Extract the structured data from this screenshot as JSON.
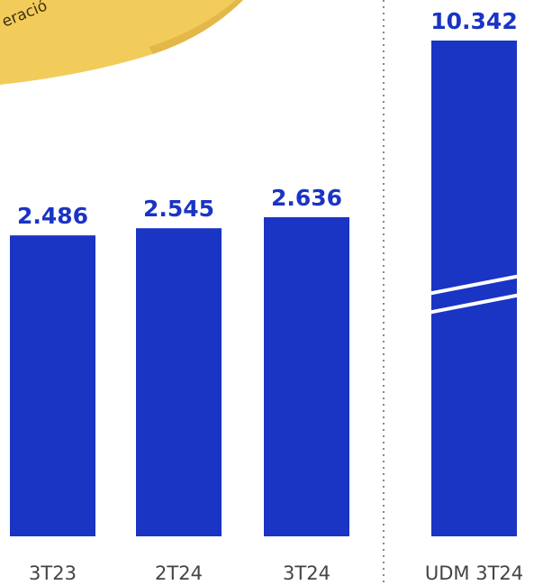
{
  "chart_data": {
    "type": "bar",
    "categories": [
      "3T23",
      "2T24",
      "3T24",
      "UDM 3T24"
    ],
    "values": [
      2486,
      2545,
      2636,
      10342
    ],
    "value_labels": [
      "2.486",
      "2.545",
      "2.636",
      "10.342"
    ],
    "axis_break_on": "UDM 3T24",
    "ylim": [
      0,
      3000
    ],
    "title": "",
    "xlabel": "",
    "ylabel": "",
    "grid": false,
    "legend": "none"
  },
  "note_fragment": "eració",
  "colors": {
    "bar": "#1a34c4",
    "value_text": "#1a34c4",
    "category_text": "#444444",
    "divider": "#888888",
    "note": "#f2cc5a"
  }
}
